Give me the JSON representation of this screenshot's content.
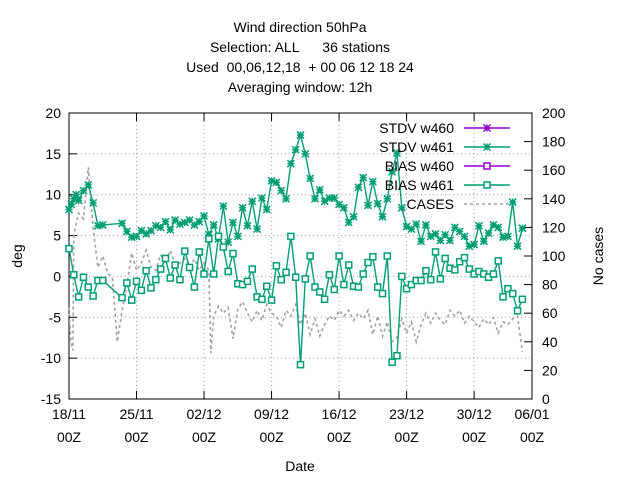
{
  "chart_data": {
    "type": "line",
    "title_lines": [
      "Wind direction 50hPa",
      "Selection: ALL      36 stations",
      "Used  00,06,12,18  + 00 06 12 18 24",
      "Averaging window: 12h"
    ],
    "xlabel": "Date",
    "ylabel": "deg",
    "y2label": "No cases",
    "xlim": [
      0,
      48
    ],
    "ylim": [
      -15,
      20
    ],
    "y2lim": [
      0,
      200
    ],
    "x_unit": "days since 18/11 00Z",
    "x_ticks": [
      {
        "x": 0,
        "l1": "18/11",
        "l2": "00Z"
      },
      {
        "x": 7,
        "l1": "25/11",
        "l2": "00Z"
      },
      {
        "x": 14,
        "l1": "02/12",
        "l2": "00Z"
      },
      {
        "x": 21,
        "l1": "09/12",
        "l2": "00Z"
      },
      {
        "x": 28,
        "l1": "16/12",
        "l2": "00Z"
      },
      {
        "x": 35,
        "l1": "23/12",
        "l2": "00Z"
      },
      {
        "x": 42,
        "l1": "30/12",
        "l2": "00Z"
      },
      {
        "x": 49,
        "l1": "06/01",
        "l2": "00Z"
      }
    ],
    "y_ticks": [
      -15,
      -10,
      -5,
      0,
      5,
      10,
      15,
      20
    ],
    "y2_ticks": [
      0,
      20,
      40,
      60,
      80,
      100,
      120,
      140,
      160,
      180,
      200
    ],
    "grid": true,
    "legend_position": "top-right",
    "colors": {
      "stdv_w460": "#9400d3",
      "stdv_w461": "#009e73",
      "bias_w460": "#9400d3",
      "bias_w461": "#009e73",
      "cases": "#a0a0a0"
    },
    "series": [
      {
        "name": "STDV w460",
        "axis": "y",
        "marker": "star",
        "points": []
      },
      {
        "name": "STDV w461",
        "axis": "y",
        "marker": "star",
        "points": [
          [
            0,
            8.2
          ],
          [
            0.25,
            8.8
          ],
          [
            0.5,
            9.5
          ],
          [
            0.75,
            10.0
          ],
          [
            1.0,
            9.3
          ],
          [
            1.5,
            10.5
          ],
          [
            2.0,
            11.2
          ],
          [
            2.5,
            9.0
          ],
          [
            3.0,
            6.2
          ],
          [
            3.5,
            6.3
          ],
          [
            5.5,
            6.5
          ],
          [
            6.0,
            5.5
          ],
          [
            6.5,
            4.8
          ],
          [
            7.0,
            4.9
          ],
          [
            7.5,
            5.6
          ],
          [
            8.0,
            5.2
          ],
          [
            8.5,
            5.6
          ],
          [
            9.0,
            6.2
          ],
          [
            9.5,
            6.0
          ],
          [
            10.0,
            6.7
          ],
          [
            10.5,
            5.7
          ],
          [
            11.0,
            6.9
          ],
          [
            11.5,
            6.4
          ],
          [
            12.0,
            6.6
          ],
          [
            12.5,
            6.9
          ],
          [
            13.0,
            6.3
          ],
          [
            13.5,
            6.7
          ],
          [
            14.0,
            7.4
          ],
          [
            14.5,
            5.1
          ],
          [
            15.0,
            6.3
          ],
          [
            15.5,
            4.6
          ],
          [
            16.0,
            8.6
          ],
          [
            16.5,
            4.2
          ],
          [
            17.0,
            6.6
          ],
          [
            17.5,
            4.9
          ],
          [
            18.0,
            8.4
          ],
          [
            18.5,
            6.2
          ],
          [
            19.0,
            9.2
          ],
          [
            19.5,
            5.8
          ],
          [
            20.0,
            9.6
          ],
          [
            20.5,
            8.2
          ],
          [
            21.0,
            11.7
          ],
          [
            21.5,
            11.5
          ],
          [
            22.0,
            10.5
          ],
          [
            22.5,
            9.5
          ],
          [
            23.0,
            13.8
          ],
          [
            23.5,
            15.5
          ],
          [
            24.0,
            17.3
          ],
          [
            24.5,
            15.0
          ],
          [
            25.0,
            12.0
          ],
          [
            25.5,
            9.5
          ],
          [
            26.0,
            10.6
          ],
          [
            26.5,
            9.2
          ],
          [
            27.0,
            9.6
          ],
          [
            27.5,
            9.6
          ],
          [
            28.0,
            8.8
          ],
          [
            28.5,
            8.4
          ],
          [
            29.0,
            6.6
          ],
          [
            29.5,
            7.3
          ],
          [
            30.0,
            10.9
          ],
          [
            30.5,
            12.1
          ],
          [
            31.0,
            8.7
          ],
          [
            31.5,
            11.6
          ],
          [
            32.0,
            8.9
          ],
          [
            32.5,
            7.3
          ],
          [
            33.0,
            9.5
          ],
          [
            33.5,
            12.8
          ],
          [
            34.0,
            15.1
          ],
          [
            34.5,
            8.4
          ],
          [
            35.0,
            6.1
          ],
          [
            35.5,
            5.8
          ],
          [
            36.0,
            6.4
          ],
          [
            36.5,
            4.3
          ],
          [
            37.0,
            6.3
          ],
          [
            37.5,
            4.9
          ],
          [
            38.0,
            5.2
          ],
          [
            38.5,
            4.4
          ],
          [
            39.0,
            5.1
          ],
          [
            39.5,
            4.4
          ],
          [
            40.0,
            6.0
          ],
          [
            40.5,
            5.5
          ],
          [
            41.0,
            4.9
          ],
          [
            41.5,
            3.7
          ],
          [
            42.0,
            3.9
          ],
          [
            42.5,
            6.2
          ],
          [
            43.0,
            4.3
          ],
          [
            43.5,
            5.3
          ],
          [
            44.0,
            6.3
          ],
          [
            44.5,
            6.0
          ],
          [
            45.0,
            4.8
          ],
          [
            45.5,
            4.9
          ],
          [
            46.0,
            9.1
          ],
          [
            46.5,
            3.7
          ],
          [
            47.0,
            5.9
          ]
        ]
      },
      {
        "name": "BIAS w460",
        "axis": "y",
        "marker": "square",
        "points": []
      },
      {
        "name": "BIAS w461",
        "axis": "y",
        "marker": "square",
        "points": [
          [
            0,
            3.4
          ],
          [
            0.5,
            0.2
          ],
          [
            1.0,
            -2.5
          ],
          [
            1.5,
            -0.1
          ],
          [
            2.0,
            -1.3
          ],
          [
            2.5,
            -2.4
          ],
          [
            3.0,
            -0.5
          ],
          [
            3.5,
            -0.5
          ],
          [
            5.5,
            -2.6
          ],
          [
            6.0,
            -0.8
          ],
          [
            6.5,
            -2.9
          ],
          [
            7.0,
            -0.6
          ],
          [
            7.5,
            -1.7
          ],
          [
            8.0,
            0.7
          ],
          [
            8.5,
            -1.4
          ],
          [
            9.0,
            -0.4
          ],
          [
            9.5,
            0.9
          ],
          [
            10.0,
            2.2
          ],
          [
            10.5,
            -0.2
          ],
          [
            11.0,
            1.4
          ],
          [
            11.5,
            -0.4
          ],
          [
            12.0,
            3.1
          ],
          [
            12.5,
            1.1
          ],
          [
            13.0,
            -1.3
          ],
          [
            13.5,
            3.0
          ],
          [
            14.0,
            0.3
          ],
          [
            14.5,
            4.6
          ],
          [
            15.0,
            0.3
          ],
          [
            15.5,
            4.9
          ],
          [
            16.0,
            3.6
          ],
          [
            16.5,
            0.6
          ],
          [
            17.0,
            2.8
          ],
          [
            17.5,
            -0.9
          ],
          [
            18.0,
            -1.0
          ],
          [
            18.5,
            -0.6
          ],
          [
            19.0,
            0.9
          ],
          [
            19.5,
            -2.5
          ],
          [
            20.0,
            -2.8
          ],
          [
            20.5,
            -1.2
          ],
          [
            21.0,
            -2.9
          ],
          [
            21.5,
            1.3
          ],
          [
            22.0,
            -0.4
          ],
          [
            22.5,
            0.5
          ],
          [
            23.0,
            4.9
          ],
          [
            23.5,
            -0.1
          ],
          [
            24.0,
            -10.8
          ],
          [
            24.5,
            -0.3
          ],
          [
            25.0,
            2.5
          ],
          [
            25.5,
            -1.3
          ],
          [
            26.0,
            -1.9
          ],
          [
            26.5,
            -2.8
          ],
          [
            27.0,
            0.2
          ],
          [
            27.5,
            -1.6
          ],
          [
            28.0,
            2.5
          ],
          [
            28.5,
            -1.0
          ],
          [
            29.0,
            1.4
          ],
          [
            29.5,
            -1.2
          ],
          [
            30.0,
            -1.3
          ],
          [
            30.5,
            0.3
          ],
          [
            31.0,
            1.7
          ],
          [
            31.5,
            2.4
          ],
          [
            32.0,
            -1.3
          ],
          [
            32.5,
            -2.1
          ],
          [
            33.0,
            2.5
          ],
          [
            33.5,
            -10.5
          ],
          [
            34.0,
            -9.7
          ],
          [
            34.5,
            0.0
          ],
          [
            35.0,
            -1.5
          ],
          [
            35.5,
            -1.0
          ],
          [
            36.0,
            -0.5
          ],
          [
            36.5,
            -0.5
          ],
          [
            37.0,
            0.7
          ],
          [
            37.5,
            -0.4
          ],
          [
            38.0,
            3.0
          ],
          [
            38.5,
            -0.3
          ],
          [
            39.0,
            2.2
          ],
          [
            39.5,
            1.0
          ],
          [
            40.0,
            0.8
          ],
          [
            40.5,
            1.8
          ],
          [
            41.0,
            2.3
          ],
          [
            41.5,
            0.9
          ],
          [
            42.0,
            0.3
          ],
          [
            42.5,
            0.6
          ],
          [
            43.0,
            0.3
          ],
          [
            43.5,
            -0.1
          ],
          [
            44.0,
            0.3
          ],
          [
            44.5,
            1.9
          ],
          [
            45.0,
            -2.5
          ],
          [
            45.5,
            -1.5
          ],
          [
            46.0,
            -2.1
          ],
          [
            46.5,
            -4.2
          ],
          [
            47.0,
            -2.8
          ]
        ]
      },
      {
        "name": "CASES",
        "axis": "y2",
        "marker": "none",
        "points": [
          [
            0,
            64
          ],
          [
            0.2,
            40
          ],
          [
            0.4,
            34
          ],
          [
            0.5,
            115
          ],
          [
            1.0,
            130
          ],
          [
            1.5,
            126
          ],
          [
            2.0,
            162
          ],
          [
            2.5,
            120
          ],
          [
            3.0,
            92
          ],
          [
            3.5,
            100
          ],
          [
            4.0,
            88
          ],
          [
            4.5,
            85
          ],
          [
            5.0,
            40
          ],
          [
            5.5,
            62
          ],
          [
            6.0,
            80
          ],
          [
            6.5,
            102
          ],
          [
            7.0,
            90
          ],
          [
            7.5,
            95
          ],
          [
            8.0,
            104
          ],
          [
            8.5,
            92
          ],
          [
            9.0,
            90
          ],
          [
            9.5,
            101
          ],
          [
            10.0,
            95
          ],
          [
            10.5,
            104
          ],
          [
            11.0,
            94
          ],
          [
            11.5,
            95
          ],
          [
            12.0,
            98
          ],
          [
            12.5,
            92
          ],
          [
            13.0,
            98
          ],
          [
            13.5,
            90
          ],
          [
            14.0,
            95
          ],
          [
            14.5,
            90
          ],
          [
            14.7,
            32
          ],
          [
            15.0,
            58
          ],
          [
            15.5,
            65
          ],
          [
            16.0,
            60
          ],
          [
            16.5,
            64
          ],
          [
            17.0,
            42
          ],
          [
            17.5,
            63
          ],
          [
            18.0,
            68
          ],
          [
            18.5,
            60
          ],
          [
            19.0,
            54
          ],
          [
            19.5,
            62
          ],
          [
            20.0,
            55
          ],
          [
            20.5,
            66
          ],
          [
            21.0,
            60
          ],
          [
            21.5,
            58
          ],
          [
            22.0,
            50
          ],
          [
            22.5,
            62
          ],
          [
            23.0,
            58
          ],
          [
            23.5,
            66
          ],
          [
            24.0,
            52
          ],
          [
            24.5,
            60
          ],
          [
            25.0,
            45
          ],
          [
            25.5,
            56
          ],
          [
            26.0,
            44
          ],
          [
            26.5,
            52
          ],
          [
            27.0,
            58
          ],
          [
            27.5,
            55
          ],
          [
            28.0,
            62
          ],
          [
            28.5,
            58
          ],
          [
            29.0,
            62
          ],
          [
            29.5,
            55
          ],
          [
            30.0,
            60
          ],
          [
            30.5,
            56
          ],
          [
            31.0,
            62
          ],
          [
            31.5,
            45
          ],
          [
            32.0,
            58
          ],
          [
            32.5,
            44
          ],
          [
            33.0,
            54
          ],
          [
            33.5,
            40
          ],
          [
            34.0,
            43
          ],
          [
            34.5,
            56
          ],
          [
            35.0,
            46
          ],
          [
            35.5,
            54
          ],
          [
            36.0,
            40
          ],
          [
            36.5,
            52
          ],
          [
            37.0,
            60
          ],
          [
            37.5,
            53
          ],
          [
            38.0,
            60
          ],
          [
            38.5,
            55
          ],
          [
            39.0,
            52
          ],
          [
            39.5,
            62
          ],
          [
            40.0,
            58
          ],
          [
            40.5,
            62
          ],
          [
            41.0,
            53
          ],
          [
            41.5,
            58
          ],
          [
            42.0,
            54
          ],
          [
            42.5,
            50
          ],
          [
            43.0,
            56
          ],
          [
            43.5,
            52
          ],
          [
            44.0,
            57
          ],
          [
            44.5,
            46
          ],
          [
            45.0,
            54
          ],
          [
            45.5,
            52
          ],
          [
            46.0,
            56
          ],
          [
            46.5,
            58
          ],
          [
            47.0,
            33
          ]
        ]
      }
    ]
  }
}
